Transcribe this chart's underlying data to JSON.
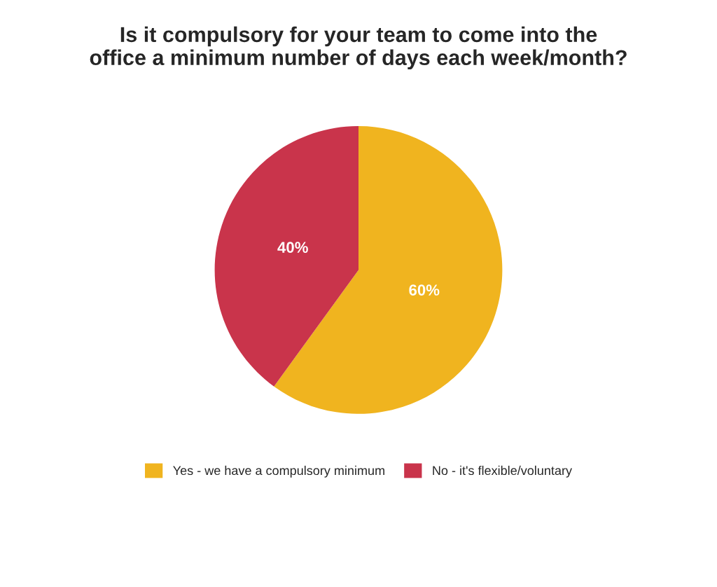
{
  "chart_data": {
    "type": "pie",
    "title": "Is it compulsory for your team to come into the\noffice a minimum number of days each week/month?",
    "categories": [
      "Yes - we have a compulsory minimum",
      "No - it's flexible/voluntary"
    ],
    "values": [
      60,
      40
    ],
    "value_labels": [
      "60%",
      "40%"
    ],
    "colors": [
      "#f0b41f",
      "#c9344b"
    ],
    "legend": "bottom"
  }
}
